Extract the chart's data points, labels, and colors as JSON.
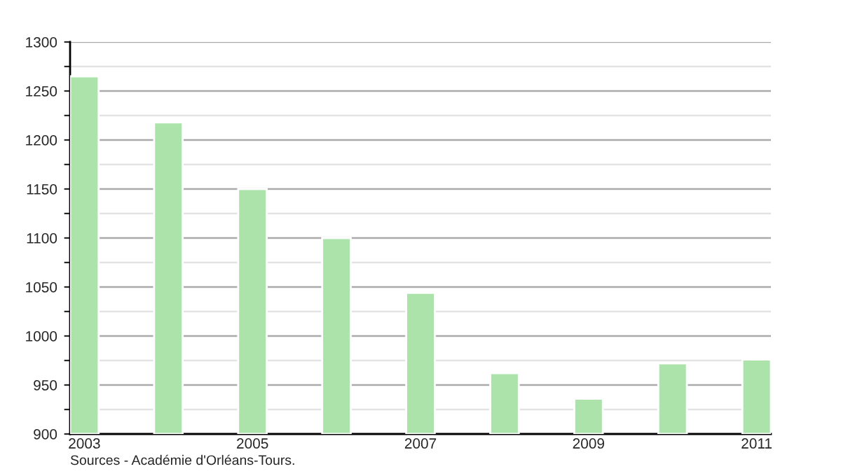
{
  "chart_data": {
    "type": "bar",
    "categories": [
      "2003",
      null,
      "2005",
      null,
      "2007",
      null,
      "2009",
      null,
      "2011"
    ],
    "values": [
      1265,
      1218,
      1150,
      1100,
      1044,
      962,
      936,
      972,
      976
    ],
    "color": "#abe3ab",
    "ylim": [
      900,
      1300
    ],
    "yticks": [
      900,
      {
        "value": 925,
        "label": null
      },
      950,
      {
        "value": 975,
        "label": null
      },
      1000,
      {
        "value": 1025,
        "label": null
      },
      1050,
      {
        "value": 1075,
        "label": null
      },
      1100,
      {
        "value": 1125,
        "label": null
      },
      1150,
      {
        "value": 1175,
        "label": null
      },
      1200,
      {
        "value": 1225,
        "label": null
      },
      1250,
      {
        "value": 1275,
        "label": null
      },
      1300
    ],
    "grid": "y",
    "annotations": [
      "Sources - Académie d'Orléans-Tours."
    ]
  }
}
